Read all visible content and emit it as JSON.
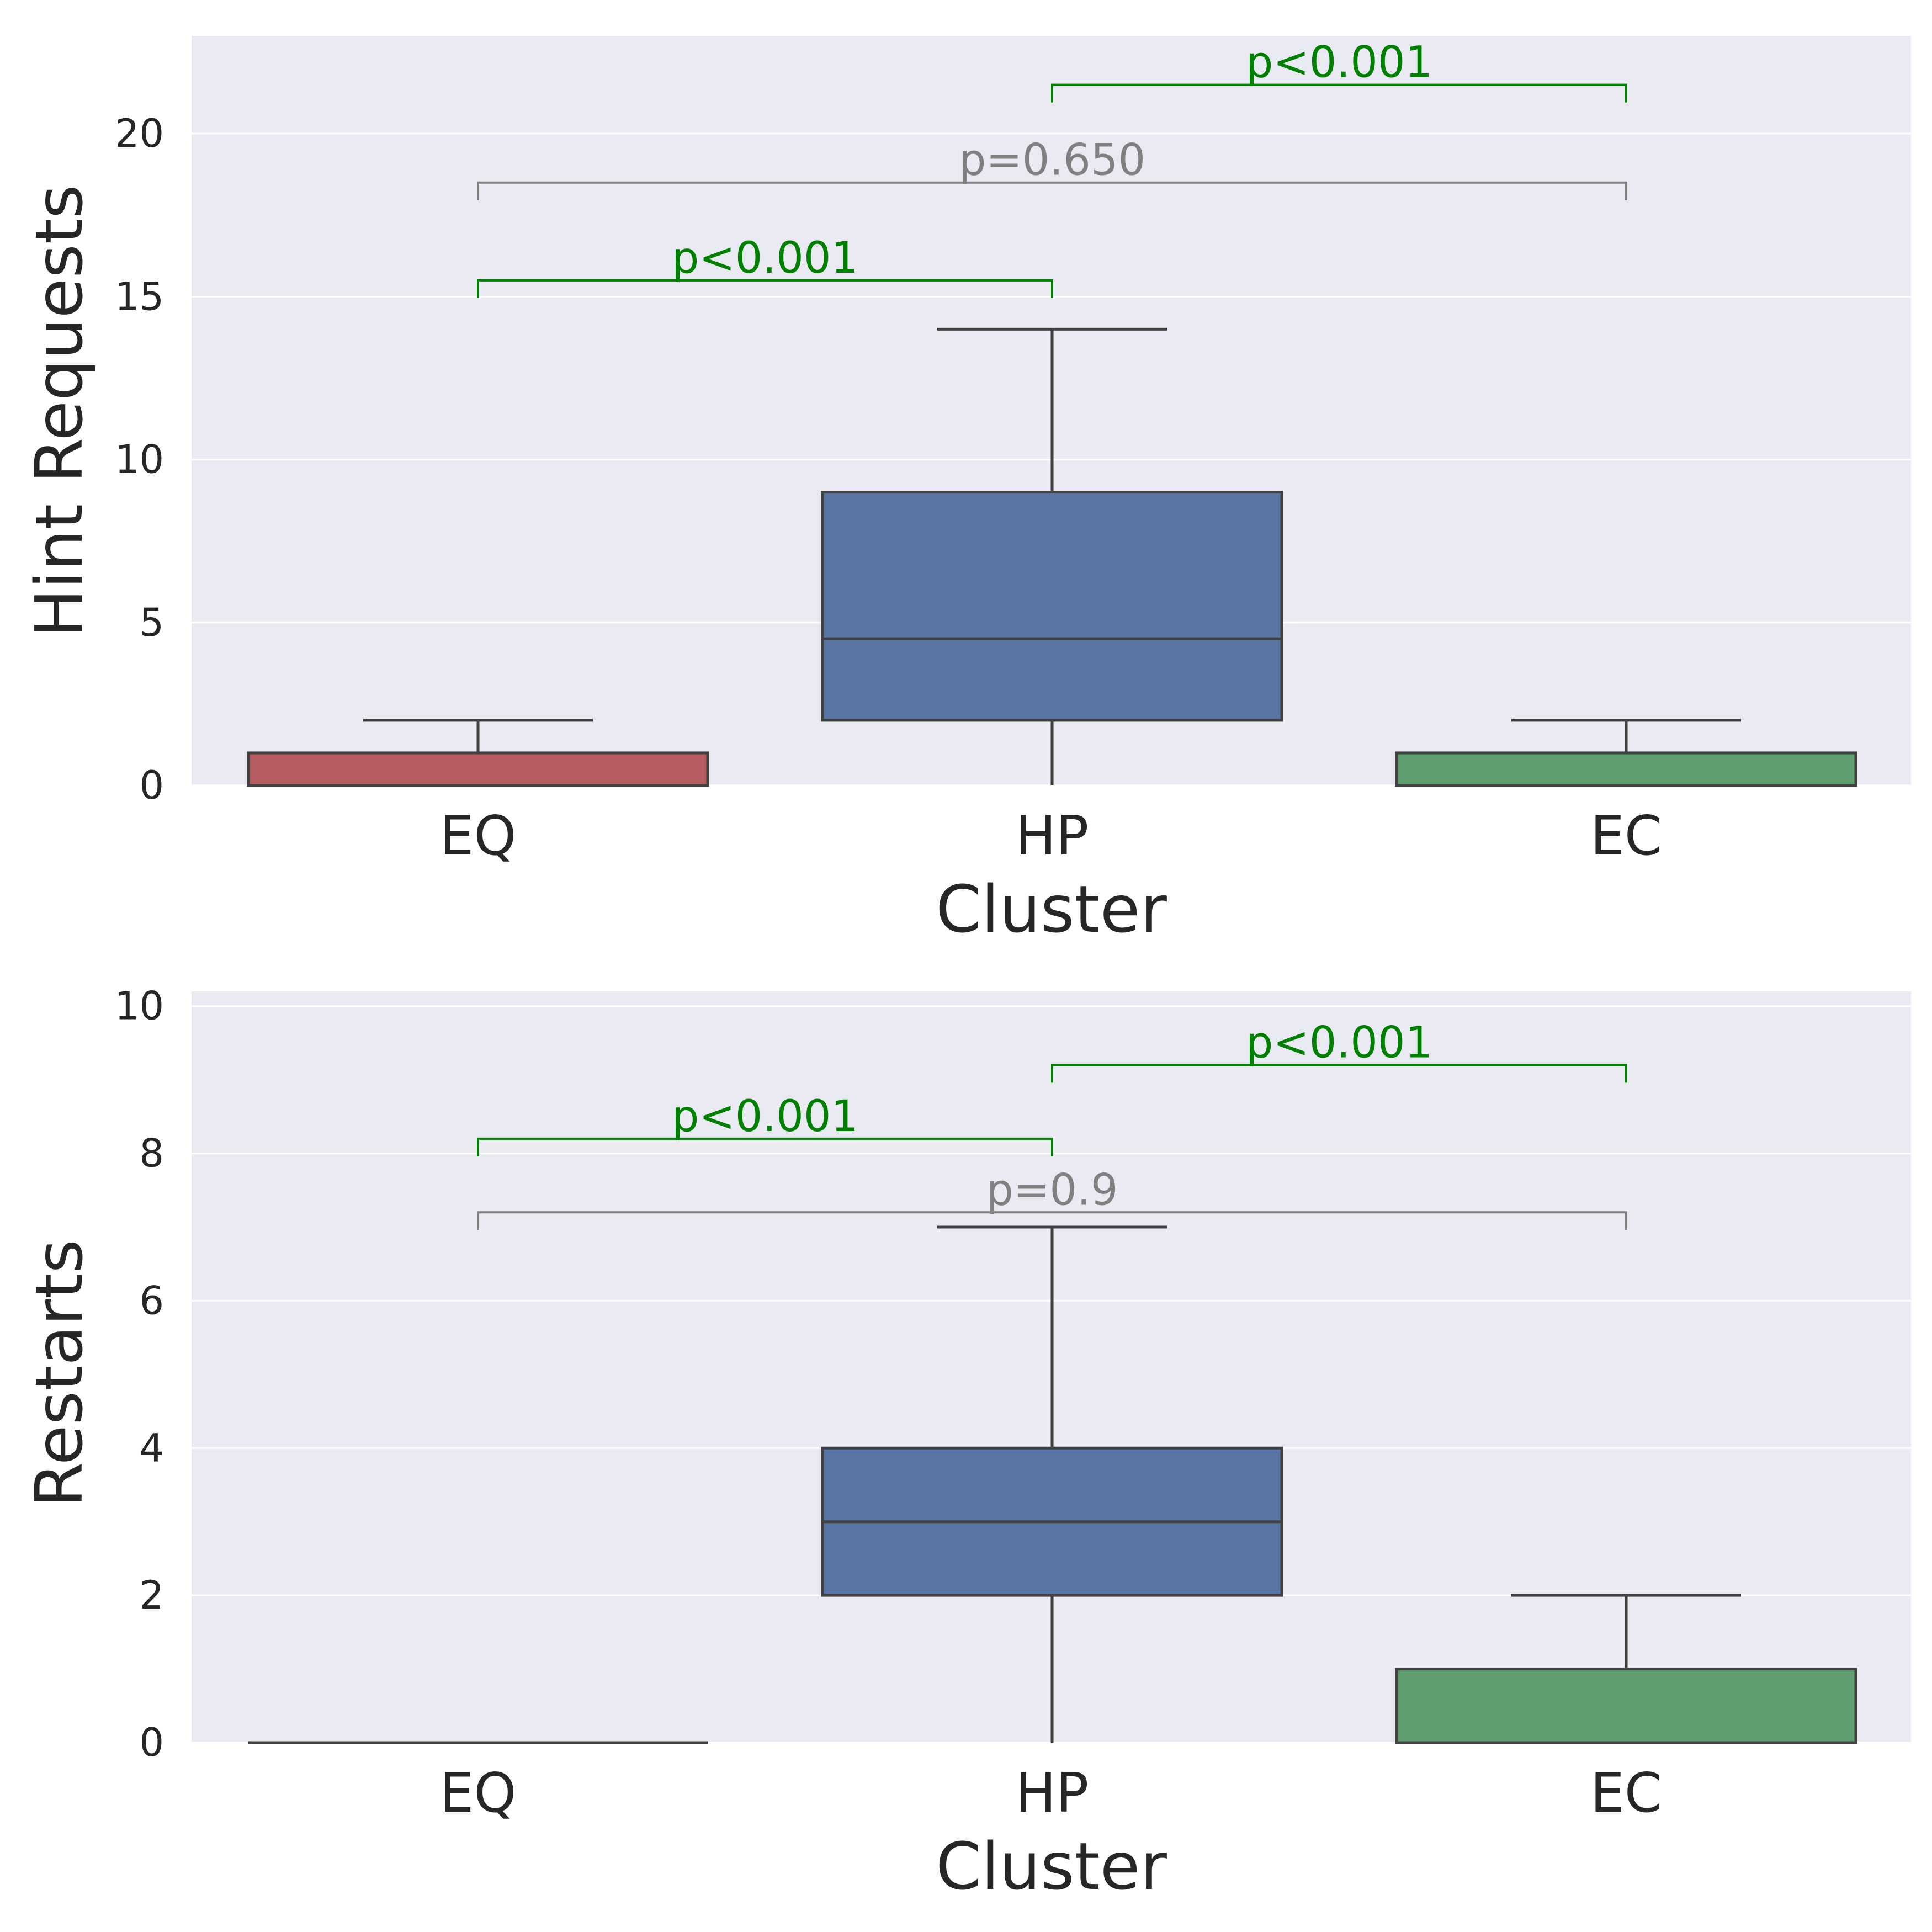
{
  "chart_data": [
    {
      "type": "box",
      "xlabel": "Cluster",
      "ylabel": "Hint Requests",
      "categories": [
        "EQ",
        "HP",
        "EC"
      ],
      "ylim": [
        0,
        23
      ],
      "yticks": [
        0,
        5,
        10,
        15,
        20
      ],
      "grid": true,
      "boxes": [
        {
          "category": "EQ",
          "whisker_low": 0,
          "q1": 0,
          "median": 0,
          "q3": 1,
          "whisker_high": 2,
          "color": "#b55d60"
        },
        {
          "category": "HP",
          "whisker_low": 0,
          "q1": 2,
          "median": 4.5,
          "q3": 9,
          "whisker_high": 14,
          "color": "#5975a4"
        },
        {
          "category": "EC",
          "whisker_low": 0,
          "q1": 0,
          "median": 0,
          "q3": 1,
          "whisker_high": 2,
          "color": "#5f9e6e"
        }
      ],
      "annotations": [
        {
          "from": "EQ",
          "to": "HP",
          "y": 15.5,
          "text": "p<0.001",
          "color": "#008000"
        },
        {
          "from": "EQ",
          "to": "EC",
          "y": 18.5,
          "text": "p=0.650",
          "color": "#808080"
        },
        {
          "from": "HP",
          "to": "EC",
          "y": 21.5,
          "text": "p<0.001",
          "color": "#008000"
        }
      ]
    },
    {
      "type": "box",
      "xlabel": "Cluster",
      "ylabel": "Restarts",
      "categories": [
        "EQ",
        "HP",
        "EC"
      ],
      "ylim": [
        0,
        10.2
      ],
      "yticks": [
        0,
        2,
        4,
        6,
        8,
        10
      ],
      "grid": true,
      "boxes": [
        {
          "category": "EQ",
          "whisker_low": 0,
          "q1": 0,
          "median": 0,
          "q3": 0,
          "whisker_high": 0,
          "color": "#b55d60"
        },
        {
          "category": "HP",
          "whisker_low": 0,
          "q1": 2,
          "median": 3,
          "q3": 4,
          "whisker_high": 7,
          "color": "#5975a4"
        },
        {
          "category": "EC",
          "whisker_low": 0,
          "q1": 0,
          "median": 0,
          "q3": 1,
          "whisker_high": 2,
          "color": "#5f9e6e"
        }
      ],
      "annotations": [
        {
          "from": "EQ",
          "to": "EC",
          "y": 7.2,
          "text": "p=0.9",
          "color": "#808080"
        },
        {
          "from": "EQ",
          "to": "HP",
          "y": 8.2,
          "text": "p<0.001",
          "color": "#008000"
        },
        {
          "from": "HP",
          "to": "EC",
          "y": 9.2,
          "text": "p<0.001",
          "color": "#008000"
        }
      ]
    }
  ]
}
